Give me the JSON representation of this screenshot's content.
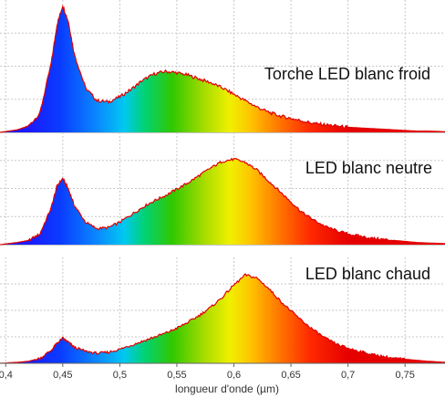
{
  "chart_data": {
    "type": "area",
    "xlabel": "longueur d'onde (µm)",
    "xlim": [
      0.395,
      0.785
    ],
    "xticks": [
      "0,4",
      "0,45",
      "0,5",
      "0,55",
      "0,6",
      "0,65",
      "0,7",
      "0,75"
    ],
    "xtick_values": [
      0.4,
      0.45,
      0.5,
      0.55,
      0.6,
      0.65,
      0.7,
      0.75
    ],
    "grid": true,
    "fill": "spectral (blue → cyan → green → yellow → orange → red)",
    "outline_color": "#e00000",
    "series": [
      {
        "name": "Torche LED  blanc froid",
        "x": [
          0.395,
          0.41,
          0.42,
          0.43,
          0.44,
          0.445,
          0.45,
          0.455,
          0.46,
          0.47,
          0.48,
          0.49,
          0.5,
          0.51,
          0.52,
          0.53,
          0.54,
          0.55,
          0.56,
          0.57,
          0.58,
          0.59,
          0.6,
          0.61,
          0.62,
          0.63,
          0.64,
          0.65,
          0.66,
          0.67,
          0.68,
          0.69,
          0.7,
          0.71,
          0.72,
          0.73,
          0.74,
          0.75,
          0.76,
          0.77,
          0.785
        ],
        "y": [
          0.0,
          0.02,
          0.05,
          0.15,
          0.55,
          0.85,
          1.0,
          0.87,
          0.62,
          0.35,
          0.25,
          0.24,
          0.28,
          0.34,
          0.41,
          0.46,
          0.48,
          0.47,
          0.45,
          0.42,
          0.39,
          0.35,
          0.3,
          0.25,
          0.2,
          0.16,
          0.13,
          0.11,
          0.09,
          0.07,
          0.06,
          0.05,
          0.04,
          0.035,
          0.03,
          0.025,
          0.02,
          0.015,
          0.01,
          0.01,
          0.005
        ]
      },
      {
        "name": "LED blanc neutre",
        "x": [
          0.395,
          0.41,
          0.42,
          0.43,
          0.44,
          0.445,
          0.45,
          0.455,
          0.46,
          0.47,
          0.48,
          0.49,
          0.5,
          0.51,
          0.52,
          0.53,
          0.54,
          0.55,
          0.56,
          0.57,
          0.58,
          0.59,
          0.6,
          0.61,
          0.62,
          0.63,
          0.64,
          0.65,
          0.66,
          0.67,
          0.68,
          0.69,
          0.7,
          0.71,
          0.72,
          0.73,
          0.74,
          0.75,
          0.76,
          0.77,
          0.785
        ],
        "y": [
          0.0,
          0.02,
          0.04,
          0.1,
          0.35,
          0.55,
          0.62,
          0.52,
          0.37,
          0.21,
          0.15,
          0.16,
          0.21,
          0.28,
          0.35,
          0.41,
          0.46,
          0.52,
          0.58,
          0.65,
          0.72,
          0.78,
          0.8,
          0.77,
          0.7,
          0.6,
          0.5,
          0.4,
          0.3,
          0.23,
          0.17,
          0.13,
          0.1,
          0.08,
          0.06,
          0.05,
          0.04,
          0.03,
          0.02,
          0.015,
          0.01
        ]
      },
      {
        "name": "LED blanc chaud",
        "x": [
          0.395,
          0.41,
          0.42,
          0.43,
          0.44,
          0.445,
          0.45,
          0.455,
          0.46,
          0.47,
          0.48,
          0.49,
          0.5,
          0.51,
          0.52,
          0.53,
          0.54,
          0.55,
          0.56,
          0.57,
          0.58,
          0.59,
          0.6,
          0.61,
          0.62,
          0.63,
          0.64,
          0.65,
          0.66,
          0.67,
          0.68,
          0.69,
          0.7,
          0.71,
          0.72,
          0.73,
          0.74,
          0.75,
          0.76,
          0.77,
          0.785
        ],
        "y": [
          0.0,
          0.01,
          0.02,
          0.05,
          0.13,
          0.2,
          0.25,
          0.21,
          0.16,
          0.12,
          0.1,
          0.11,
          0.14,
          0.18,
          0.22,
          0.26,
          0.3,
          0.35,
          0.41,
          0.48,
          0.56,
          0.66,
          0.78,
          0.88,
          0.85,
          0.75,
          0.63,
          0.52,
          0.42,
          0.33,
          0.25,
          0.19,
          0.15,
          0.12,
          0.09,
          0.07,
          0.05,
          0.04,
          0.03,
          0.02,
          0.01
        ]
      }
    ]
  }
}
